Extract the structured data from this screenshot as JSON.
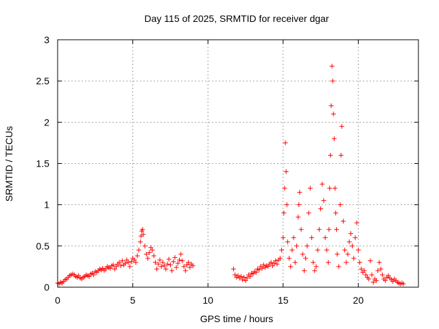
{
  "chart_data": {
    "type": "scatter",
    "title": "Day 115 of 2025, SRMTID for receiver dgar",
    "xlabel": "GPS time / hours",
    "ylabel": "SRMTID / TECUs",
    "xlim": [
      0,
      24
    ],
    "ylim": [
      0,
      3
    ],
    "xticks": [
      0,
      5,
      10,
      15,
      20
    ],
    "yticks": [
      0,
      0.5,
      1,
      1.5,
      2,
      2.5,
      3
    ],
    "xtick_labels": [
      "0",
      "5",
      "10",
      "15",
      "20"
    ],
    "ytick_labels": [
      "0",
      "0.5",
      "1",
      "1.5",
      "2",
      "2.5",
      "3"
    ],
    "grid": true,
    "marker": "+",
    "series": [
      {
        "name": "SRMTID",
        "color": "#ff0000",
        "points": [
          [
            0.0,
            0.05
          ],
          [
            0.1,
            0.04
          ],
          [
            0.2,
            0.06
          ],
          [
            0.3,
            0.05
          ],
          [
            0.4,
            0.07
          ],
          [
            0.5,
            0.09
          ],
          [
            0.6,
            0.1
          ],
          [
            0.7,
            0.12
          ],
          [
            0.8,
            0.14
          ],
          [
            0.9,
            0.15
          ],
          [
            1.0,
            0.16
          ],
          [
            1.1,
            0.15
          ],
          [
            1.2,
            0.13
          ],
          [
            1.3,
            0.12
          ],
          [
            1.4,
            0.14
          ],
          [
            1.5,
            0.11
          ],
          [
            1.6,
            0.1
          ],
          [
            1.7,
            0.12
          ],
          [
            1.8,
            0.13
          ],
          [
            1.9,
            0.15
          ],
          [
            2.0,
            0.14
          ],
          [
            2.1,
            0.13
          ],
          [
            2.2,
            0.16
          ],
          [
            2.3,
            0.17
          ],
          [
            2.4,
            0.15
          ],
          [
            2.5,
            0.19
          ],
          [
            2.6,
            0.18
          ],
          [
            2.7,
            0.2
          ],
          [
            2.8,
            0.22
          ],
          [
            2.9,
            0.21
          ],
          [
            3.0,
            0.23
          ],
          [
            3.1,
            0.2
          ],
          [
            3.2,
            0.22
          ],
          [
            3.3,
            0.25
          ],
          [
            3.4,
            0.24
          ],
          [
            3.5,
            0.23
          ],
          [
            3.6,
            0.26
          ],
          [
            3.7,
            0.27
          ],
          [
            3.8,
            0.22
          ],
          [
            3.9,
            0.25
          ],
          [
            4.0,
            0.28
          ],
          [
            4.1,
            0.3
          ],
          [
            4.2,
            0.26
          ],
          [
            4.3,
            0.32
          ],
          [
            4.4,
            0.27
          ],
          [
            4.5,
            0.29
          ],
          [
            4.6,
            0.33
          ],
          [
            4.7,
            0.3
          ],
          [
            4.8,
            0.25
          ],
          [
            4.9,
            0.31
          ],
          [
            5.0,
            0.35
          ],
          [
            5.1,
            0.33
          ],
          [
            5.2,
            0.3
          ],
          [
            5.3,
            0.38
          ],
          [
            5.4,
            0.45
          ],
          [
            5.5,
            0.55
          ],
          [
            5.55,
            0.62
          ],
          [
            5.6,
            0.68
          ],
          [
            5.65,
            0.7
          ],
          [
            5.7,
            0.64
          ],
          [
            5.8,
            0.5
          ],
          [
            5.9,
            0.4
          ],
          [
            6.0,
            0.35
          ],
          [
            6.1,
            0.42
          ],
          [
            6.2,
            0.48
          ],
          [
            6.3,
            0.45
          ],
          [
            6.4,
            0.38
          ],
          [
            6.5,
            0.3
          ],
          [
            6.6,
            0.22
          ],
          [
            6.7,
            0.28
          ],
          [
            6.8,
            0.33
          ],
          [
            6.9,
            0.25
          ],
          [
            7.0,
            0.3
          ],
          [
            7.1,
            0.26
          ],
          [
            7.2,
            0.22
          ],
          [
            7.3,
            0.28
          ],
          [
            7.4,
            0.34
          ],
          [
            7.5,
            0.27
          ],
          [
            7.6,
            0.2
          ],
          [
            7.7,
            0.31
          ],
          [
            7.8,
            0.36
          ],
          [
            7.9,
            0.24
          ],
          [
            8.0,
            0.29
          ],
          [
            8.1,
            0.33
          ],
          [
            8.2,
            0.4
          ],
          [
            8.3,
            0.32
          ],
          [
            8.4,
            0.25
          ],
          [
            8.5,
            0.2
          ],
          [
            8.6,
            0.27
          ],
          [
            8.7,
            0.3
          ],
          [
            8.8,
            0.24
          ],
          [
            8.9,
            0.28
          ],
          [
            9.0,
            0.26
          ],
          [
            11.7,
            0.22
          ],
          [
            11.8,
            0.15
          ],
          [
            11.9,
            0.12
          ],
          [
            12.0,
            0.14
          ],
          [
            12.1,
            0.11
          ],
          [
            12.2,
            0.13
          ],
          [
            12.3,
            0.09
          ],
          [
            12.4,
            0.12
          ],
          [
            12.5,
            0.08
          ],
          [
            12.6,
            0.11
          ],
          [
            12.7,
            0.15
          ],
          [
            12.8,
            0.13
          ],
          [
            12.9,
            0.17
          ],
          [
            13.0,
            0.16
          ],
          [
            13.1,
            0.19
          ],
          [
            13.2,
            0.18
          ],
          [
            13.3,
            0.22
          ],
          [
            13.4,
            0.21
          ],
          [
            13.5,
            0.25
          ],
          [
            13.6,
            0.23
          ],
          [
            13.7,
            0.27
          ],
          [
            13.8,
            0.24
          ],
          [
            13.9,
            0.26
          ],
          [
            14.0,
            0.25
          ],
          [
            14.1,
            0.28
          ],
          [
            14.2,
            0.3
          ],
          [
            14.3,
            0.26
          ],
          [
            14.4,
            0.29
          ],
          [
            14.5,
            0.32
          ],
          [
            14.6,
            0.28
          ],
          [
            14.7,
            0.33
          ],
          [
            14.8,
            0.35
          ],
          [
            14.9,
            0.45
          ],
          [
            15.0,
            0.6
          ],
          [
            15.05,
            0.9
          ],
          [
            15.1,
            1.2
          ],
          [
            15.15,
            1.75
          ],
          [
            15.2,
            1.4
          ],
          [
            15.25,
            1.0
          ],
          [
            15.3,
            0.55
          ],
          [
            15.4,
            0.35
          ],
          [
            15.5,
            0.25
          ],
          [
            15.6,
            0.45
          ],
          [
            15.7,
            0.6
          ],
          [
            15.8,
            0.3
          ],
          [
            15.9,
            0.5
          ],
          [
            16.0,
            0.85
          ],
          [
            16.05,
            1.0
          ],
          [
            16.1,
            1.15
          ],
          [
            16.2,
            0.7
          ],
          [
            16.3,
            0.4
          ],
          [
            16.4,
            0.2
          ],
          [
            16.5,
            0.35
          ],
          [
            16.6,
            0.5
          ],
          [
            16.7,
            0.9
          ],
          [
            16.8,
            1.2
          ],
          [
            16.9,
            0.6
          ],
          [
            17.0,
            0.3
          ],
          [
            17.1,
            0.2
          ],
          [
            17.2,
            0.25
          ],
          [
            17.3,
            0.45
          ],
          [
            17.4,
            0.7
          ],
          [
            17.5,
            0.95
          ],
          [
            17.6,
            1.25
          ],
          [
            17.7,
            1.05
          ],
          [
            17.8,
            0.6
          ],
          [
            17.9,
            0.45
          ],
          [
            18.0,
            0.3
          ],
          [
            18.05,
            0.7
          ],
          [
            18.1,
            1.2
          ],
          [
            18.15,
            1.6
          ],
          [
            18.2,
            2.2
          ],
          [
            18.25,
            2.68
          ],
          [
            18.3,
            2.5
          ],
          [
            18.35,
            2.1
          ],
          [
            18.4,
            1.8
          ],
          [
            18.45,
            1.2
          ],
          [
            18.5,
            0.9
          ],
          [
            18.55,
            0.7
          ],
          [
            18.6,
            0.4
          ],
          [
            18.7,
            0.25
          ],
          [
            18.8,
            1.0
          ],
          [
            18.85,
            1.6
          ],
          [
            18.9,
            1.95
          ],
          [
            19.0,
            0.8
          ],
          [
            19.1,
            0.45
          ],
          [
            19.2,
            0.3
          ],
          [
            19.3,
            0.4
          ],
          [
            19.4,
            0.55
          ],
          [
            19.5,
            0.65
          ],
          [
            19.6,
            0.5
          ],
          [
            19.7,
            0.35
          ],
          [
            19.8,
            0.6
          ],
          [
            19.9,
            0.78
          ],
          [
            20.0,
            0.45
          ],
          [
            20.1,
            0.3
          ],
          [
            20.2,
            0.22
          ],
          [
            20.3,
            0.18
          ],
          [
            20.4,
            0.2
          ],
          [
            20.5,
            0.15
          ],
          [
            20.6,
            0.12
          ],
          [
            20.7,
            0.1
          ],
          [
            20.8,
            0.32
          ],
          [
            20.9,
            0.15
          ],
          [
            21.0,
            0.06
          ],
          [
            21.1,
            0.1
          ],
          [
            21.2,
            0.08
          ],
          [
            21.3,
            0.2
          ],
          [
            21.4,
            0.3
          ],
          [
            21.5,
            0.22
          ],
          [
            21.6,
            0.15
          ],
          [
            21.7,
            0.1
          ],
          [
            21.8,
            0.08
          ],
          [
            21.9,
            0.12
          ],
          [
            22.0,
            0.14
          ],
          [
            22.1,
            0.11
          ],
          [
            22.2,
            0.09
          ],
          [
            22.3,
            0.07
          ],
          [
            22.4,
            0.1
          ],
          [
            22.5,
            0.08
          ],
          [
            22.6,
            0.06
          ],
          [
            22.7,
            0.05
          ],
          [
            22.8,
            0.04
          ],
          [
            22.9,
            0.05
          ],
          [
            23.0,
            0.04
          ]
        ]
      }
    ]
  }
}
